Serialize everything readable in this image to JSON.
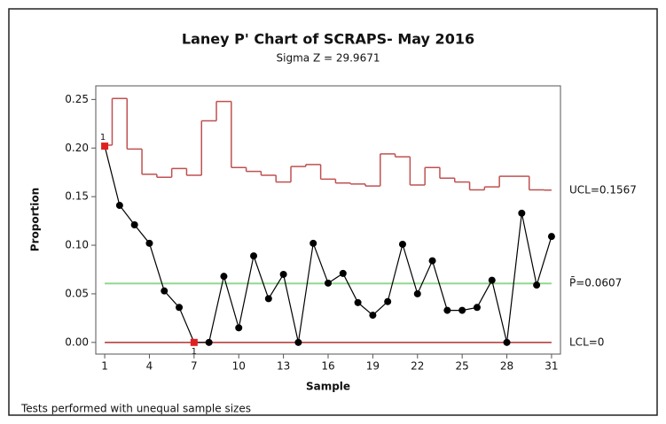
{
  "chart_data": {
    "type": "control",
    "title": "Laney P' Chart of SCRAPS- May 2016",
    "subtitle": "Sigma Z = 29.9671",
    "x_label": "Sample",
    "y_label": "Proportion",
    "footnote": "Tests performed with unequal sample sizes",
    "x": [
      1,
      2,
      3,
      4,
      5,
      6,
      7,
      8,
      9,
      10,
      11,
      12,
      13,
      14,
      15,
      16,
      17,
      18,
      19,
      20,
      21,
      22,
      23,
      24,
      25,
      26,
      27,
      28,
      29,
      30,
      31
    ],
    "values": [
      0.202,
      0.141,
      0.121,
      0.102,
      0.053,
      0.036,
      0.0,
      0.0,
      0.068,
      0.015,
      0.089,
      0.045,
      0.07,
      0.0,
      0.102,
      0.061,
      0.071,
      0.041,
      0.028,
      0.042,
      0.101,
      0.05,
      0.084,
      0.033,
      0.033,
      0.036,
      0.064,
      0.0,
      0.133,
      0.059,
      0.109
    ],
    "ucl_values": [
      0.203,
      0.251,
      0.199,
      0.173,
      0.17,
      0.179,
      0.172,
      0.228,
      0.248,
      0.18,
      0.176,
      0.172,
      0.165,
      0.181,
      0.183,
      0.168,
      0.164,
      0.163,
      0.161,
      0.194,
      0.191,
      0.162,
      0.18,
      0.169,
      0.165,
      0.157,
      0.16,
      0.171,
      0.171,
      0.157,
      0.1567
    ],
    "center": 0.0607,
    "lcl": 0,
    "ucl_label": "UCL=0.1567",
    "center_label": "P̄=0.0607",
    "lcl_label": "LCL=0",
    "test_failures": [
      {
        "sample": 1,
        "label": "1"
      },
      {
        "sample": 7,
        "label": "1"
      }
    ],
    "point_color": "#000000",
    "failure_color": "#e02020",
    "ucl_color": "#c05050",
    "center_color": "#8fd88f",
    "lcl_color": "#b03030",
    "xlim": [
      0.4,
      31.6
    ],
    "xticks": [
      1,
      4,
      7,
      10,
      13,
      16,
      19,
      22,
      25,
      28,
      31
    ],
    "ylim": [
      -0.012,
      0.264
    ],
    "yticks": [
      {
        "value": 0,
        "label": "0.00"
      },
      {
        "value": 0.05,
        "label": "0.05"
      },
      {
        "value": 0.1,
        "label": "0.10"
      },
      {
        "value": 0.15,
        "label": "0.15"
      },
      {
        "value": 0.2,
        "label": "0.20"
      },
      {
        "value": 0.25,
        "label": "0.25"
      }
    ]
  }
}
